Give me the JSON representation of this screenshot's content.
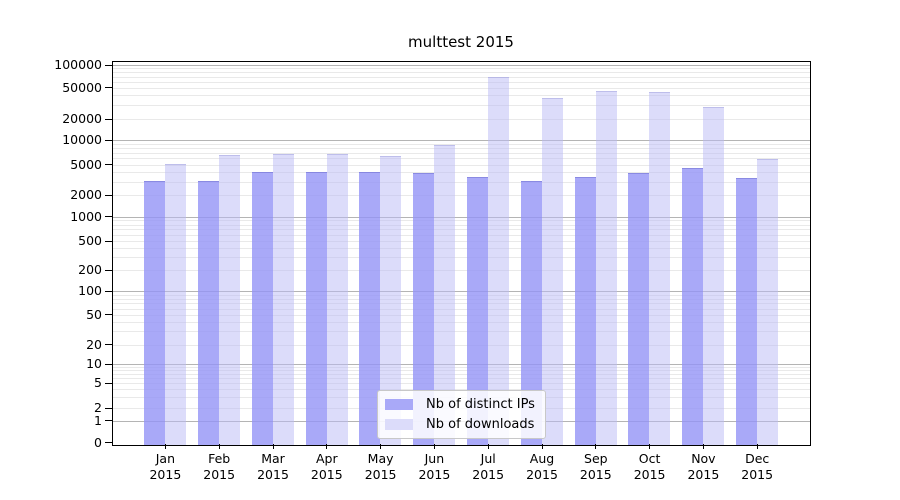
{
  "chart_data": {
    "type": "bar",
    "title": "multtest 2015",
    "categories": [
      "Jan 2015",
      "Feb 2015",
      "Mar 2015",
      "Apr 2015",
      "May 2015",
      "Jun 2015",
      "Jul 2015",
      "Aug 2015",
      "Sep 2015",
      "Oct 2015",
      "Nov 2015",
      "Dec 2015"
    ],
    "series": [
      {
        "name": "Nb of distinct IPs",
        "key": "distinct-ips",
        "color": "#a9a9f8",
        "color_rgba": "rgba(148,148,246,0.8)",
        "values": [
          3050,
          3070,
          3950,
          4030,
          3970,
          3930,
          3480,
          3050,
          3420,
          3850,
          4480,
          3310
        ]
      },
      {
        "name": "Nb of downloads",
        "key": "downloads",
        "color": "#dcdcfa",
        "color_rgba": "rgba(185,185,245,0.5)",
        "values": [
          5100,
          6620,
          6750,
          6750,
          6330,
          8690,
          69000,
          36600,
          45800,
          44400,
          28200,
          5820
        ]
      }
    ],
    "xlabel": "",
    "ylabel": "",
    "y_axis": {
      "scale": "log-1-2-5",
      "ticks": [
        0,
        1,
        2,
        5,
        10,
        20,
        50,
        100,
        200,
        500,
        1000,
        2000,
        5000,
        10000,
        20000,
        50000,
        100000
      ],
      "ylim": [
        0,
        100000
      ]
    },
    "grid": {
      "on": true,
      "major_color": "#b4b4b4",
      "minor_color": "#e9e9e9"
    },
    "legend": {
      "position": "bottom-center",
      "entries": [
        "Nb of distinct IPs",
        "Nb of downloads"
      ]
    }
  }
}
